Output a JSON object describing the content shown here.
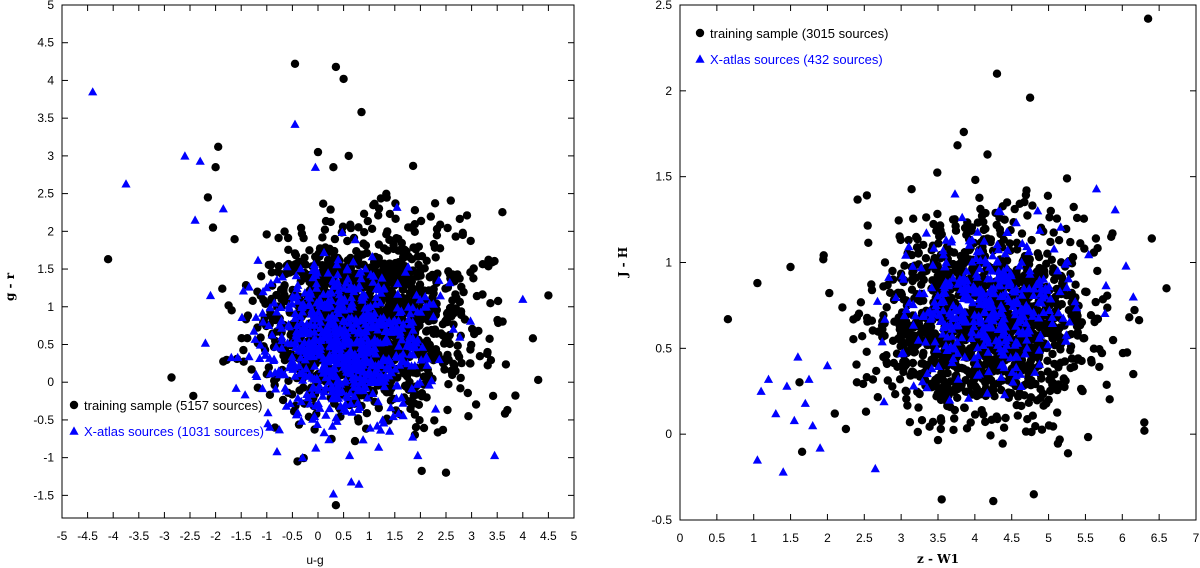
{
  "colors": {
    "training": "#000000",
    "xatlas": "#0000ff",
    "frame": "#000000"
  },
  "chart_data": [
    {
      "type": "scatter",
      "xlabel": "u-g",
      "ylabel": "g - r",
      "xlim": [
        -5,
        5
      ],
      "ylim": [
        -1.8,
        5
      ],
      "xticks": [
        "-5",
        "-4.5",
        "-4",
        "-3.5",
        "-3",
        "-2.5",
        "-2",
        "-1.5",
        "-1",
        "-0.5",
        "0",
        "0.5",
        "1",
        "1.5",
        "2",
        "2.5",
        "3",
        "3.5",
        "4",
        "4.5",
        "5"
      ],
      "yticks": [
        "-1.5",
        "-1",
        "-0.5",
        "0",
        "0.5",
        "1",
        "1.5",
        "2",
        "2.5",
        "3",
        "3.5",
        "4",
        "4.5",
        "5"
      ],
      "legend_position": "bottom-left",
      "series": [
        {
          "name": "training sample (5157 sources)",
          "marker": "circle",
          "color": "#000000",
          "cluster": {
            "center": [
              0.9,
              0.8
            ],
            "spread": [
              1.0,
              0.6
            ],
            "count": 1400
          },
          "outliers": [
            [
              -4.1,
              1.63
            ],
            [
              -0.45,
              4.22
            ],
            [
              0.35,
              4.18
            ],
            [
              0.5,
              4.02
            ],
            [
              0.85,
              3.58
            ],
            [
              0.0,
              3.05
            ],
            [
              -1.95,
              3.12
            ],
            [
              -2.0,
              2.85
            ],
            [
              -2.15,
              2.45
            ],
            [
              -2.05,
              2.05
            ],
            [
              4.5,
              1.15
            ],
            [
              4.3,
              0.03
            ],
            [
              3.7,
              -0.37
            ],
            [
              2.5,
              -1.2
            ],
            [
              -0.4,
              -1.05
            ],
            [
              0.35,
              -1.63
            ],
            [
              0.6,
              3.0
            ],
            [
              0.3,
              2.85
            ]
          ]
        },
        {
          "name": "X-atlas sources (1031 sources)",
          "marker": "triangle",
          "color": "#0000ff",
          "cluster": {
            "center": [
              0.5,
              0.5
            ],
            "spread": [
              0.8,
              0.5
            ],
            "count": 700
          },
          "outliers": [
            [
              -4.4,
              3.85
            ],
            [
              -3.75,
              2.63
            ],
            [
              -2.6,
              3.0
            ],
            [
              -2.3,
              2.93
            ],
            [
              -2.4,
              2.15
            ],
            [
              -1.85,
              2.3
            ],
            [
              -2.1,
              1.15
            ],
            [
              -2.2,
              0.52
            ],
            [
              -1.6,
              -0.08
            ],
            [
              -0.45,
              3.42
            ],
            [
              -0.05,
              2.85
            ],
            [
              1.95,
              -0.97
            ],
            [
              3.45,
              -0.97
            ],
            [
              -0.8,
              -0.92
            ],
            [
              -0.3,
              -1.0
            ],
            [
              0.3,
              -1.48
            ],
            [
              0.65,
              -1.32
            ],
            [
              0.8,
              -1.35
            ],
            [
              4.0,
              1.1
            ]
          ]
        }
      ]
    },
    {
      "type": "scatter",
      "xlabel": "z - W1",
      "ylabel": "J - H",
      "xlim": [
        0,
        7
      ],
      "ylim": [
        -0.5,
        2.5
      ],
      "xticks": [
        "0",
        "0.5",
        "1",
        "1.5",
        "2",
        "2.5",
        "3",
        "3.5",
        "4",
        "4.5",
        "5",
        "5.5",
        "6",
        "6.5",
        "7"
      ],
      "yticks": [
        "-0.5",
        "0",
        "0.5",
        "1",
        "1.5",
        "2",
        "2.5"
      ],
      "legend_position": "top-left",
      "series": [
        {
          "name": "training sample (3015 sources)",
          "marker": "circle",
          "color": "#000000",
          "cluster": {
            "center": [
              4.1,
              0.65
            ],
            "spread": [
              0.75,
              0.28
            ],
            "count": 1300
          },
          "outliers": [
            [
              0.65,
              0.67
            ],
            [
              1.05,
              0.88
            ],
            [
              6.35,
              2.42
            ],
            [
              4.3,
              2.1
            ],
            [
              4.75,
              1.96
            ],
            [
              3.85,
              1.76
            ],
            [
              4.7,
              1.42
            ],
            [
              5.25,
              1.49
            ],
            [
              6.4,
              1.14
            ],
            [
              6.6,
              0.85
            ],
            [
              6.3,
              0.02
            ],
            [
              6.15,
              0.35
            ],
            [
              3.55,
              -0.38
            ],
            [
              4.25,
              -0.39
            ],
            [
              4.8,
              -0.35
            ],
            [
              2.25,
              0.03
            ],
            [
              2.1,
              0.12
            ],
            [
              5.85,
              1.15
            ]
          ]
        },
        {
          "name": "X-atlas sources (432 sources)",
          "marker": "triangle",
          "color": "#0000ff",
          "cluster": {
            "center": [
              4.1,
              0.75
            ],
            "spread": [
              0.55,
              0.2
            ],
            "count": 420
          },
          "outliers": [
            [
              1.05,
              -0.15
            ],
            [
              1.4,
              -0.22
            ],
            [
              1.2,
              0.32
            ],
            [
              1.45,
              0.28
            ],
            [
              1.6,
              0.45
            ],
            [
              1.7,
              0.18
            ],
            [
              1.3,
              0.12
            ],
            [
              1.55,
              0.08
            ],
            [
              1.8,
              0.05
            ],
            [
              1.9,
              -0.08
            ],
            [
              1.1,
              0.25
            ],
            [
              1.75,
              0.32
            ],
            [
              2.0,
              0.4
            ],
            [
              2.65,
              -0.2
            ],
            [
              5.65,
              1.43
            ],
            [
              6.15,
              0.8
            ],
            [
              6.05,
              0.98
            ]
          ]
        }
      ]
    }
  ]
}
